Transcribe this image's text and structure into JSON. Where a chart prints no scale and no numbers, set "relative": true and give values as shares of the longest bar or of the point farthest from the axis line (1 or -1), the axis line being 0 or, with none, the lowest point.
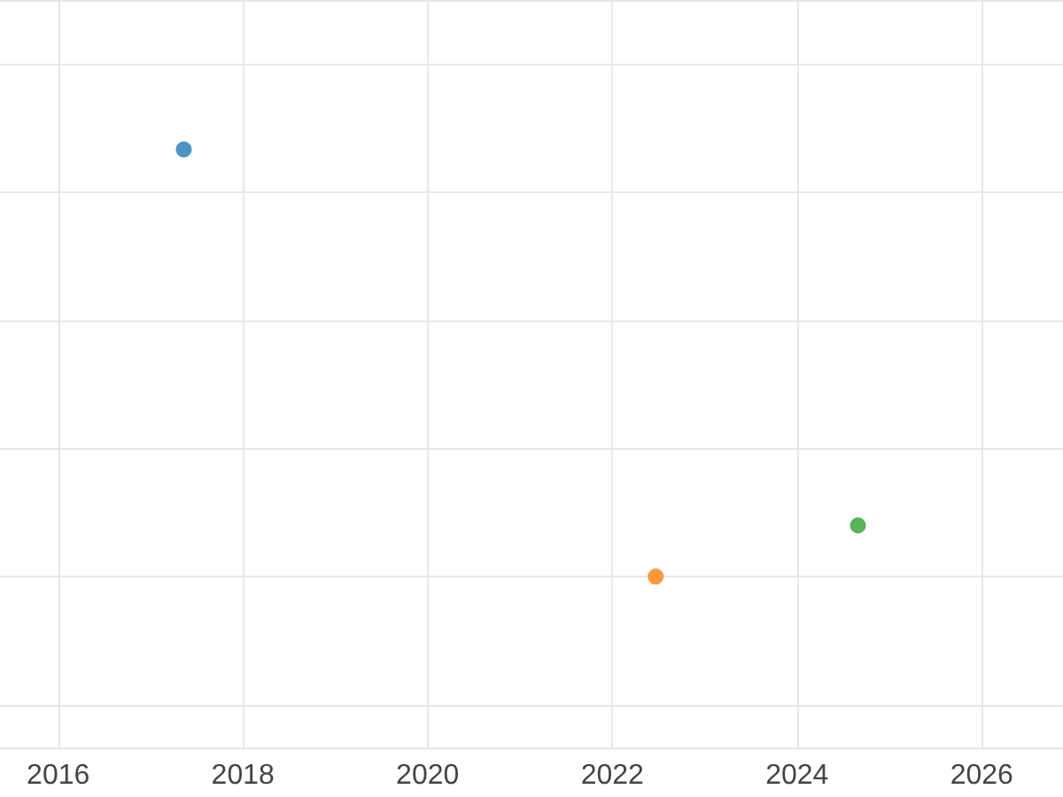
{
  "chart_data": {
    "type": "scatter",
    "relative": true,
    "x": [
      2017.36,
      2022.47,
      2024.66
    ],
    "values": [
      1,
      0,
      0.12
    ],
    "colors": [
      "#1f77b4",
      "#ff7f0e",
      "#2ca02c"
    ],
    "xlim": [
      2015.37,
      2026.88
    ],
    "xticks": [
      2016,
      2018,
      2020,
      2022,
      2024,
      2026
    ],
    "grid": true,
    "marker": "circle",
    "tick_labels": "x"
  }
}
